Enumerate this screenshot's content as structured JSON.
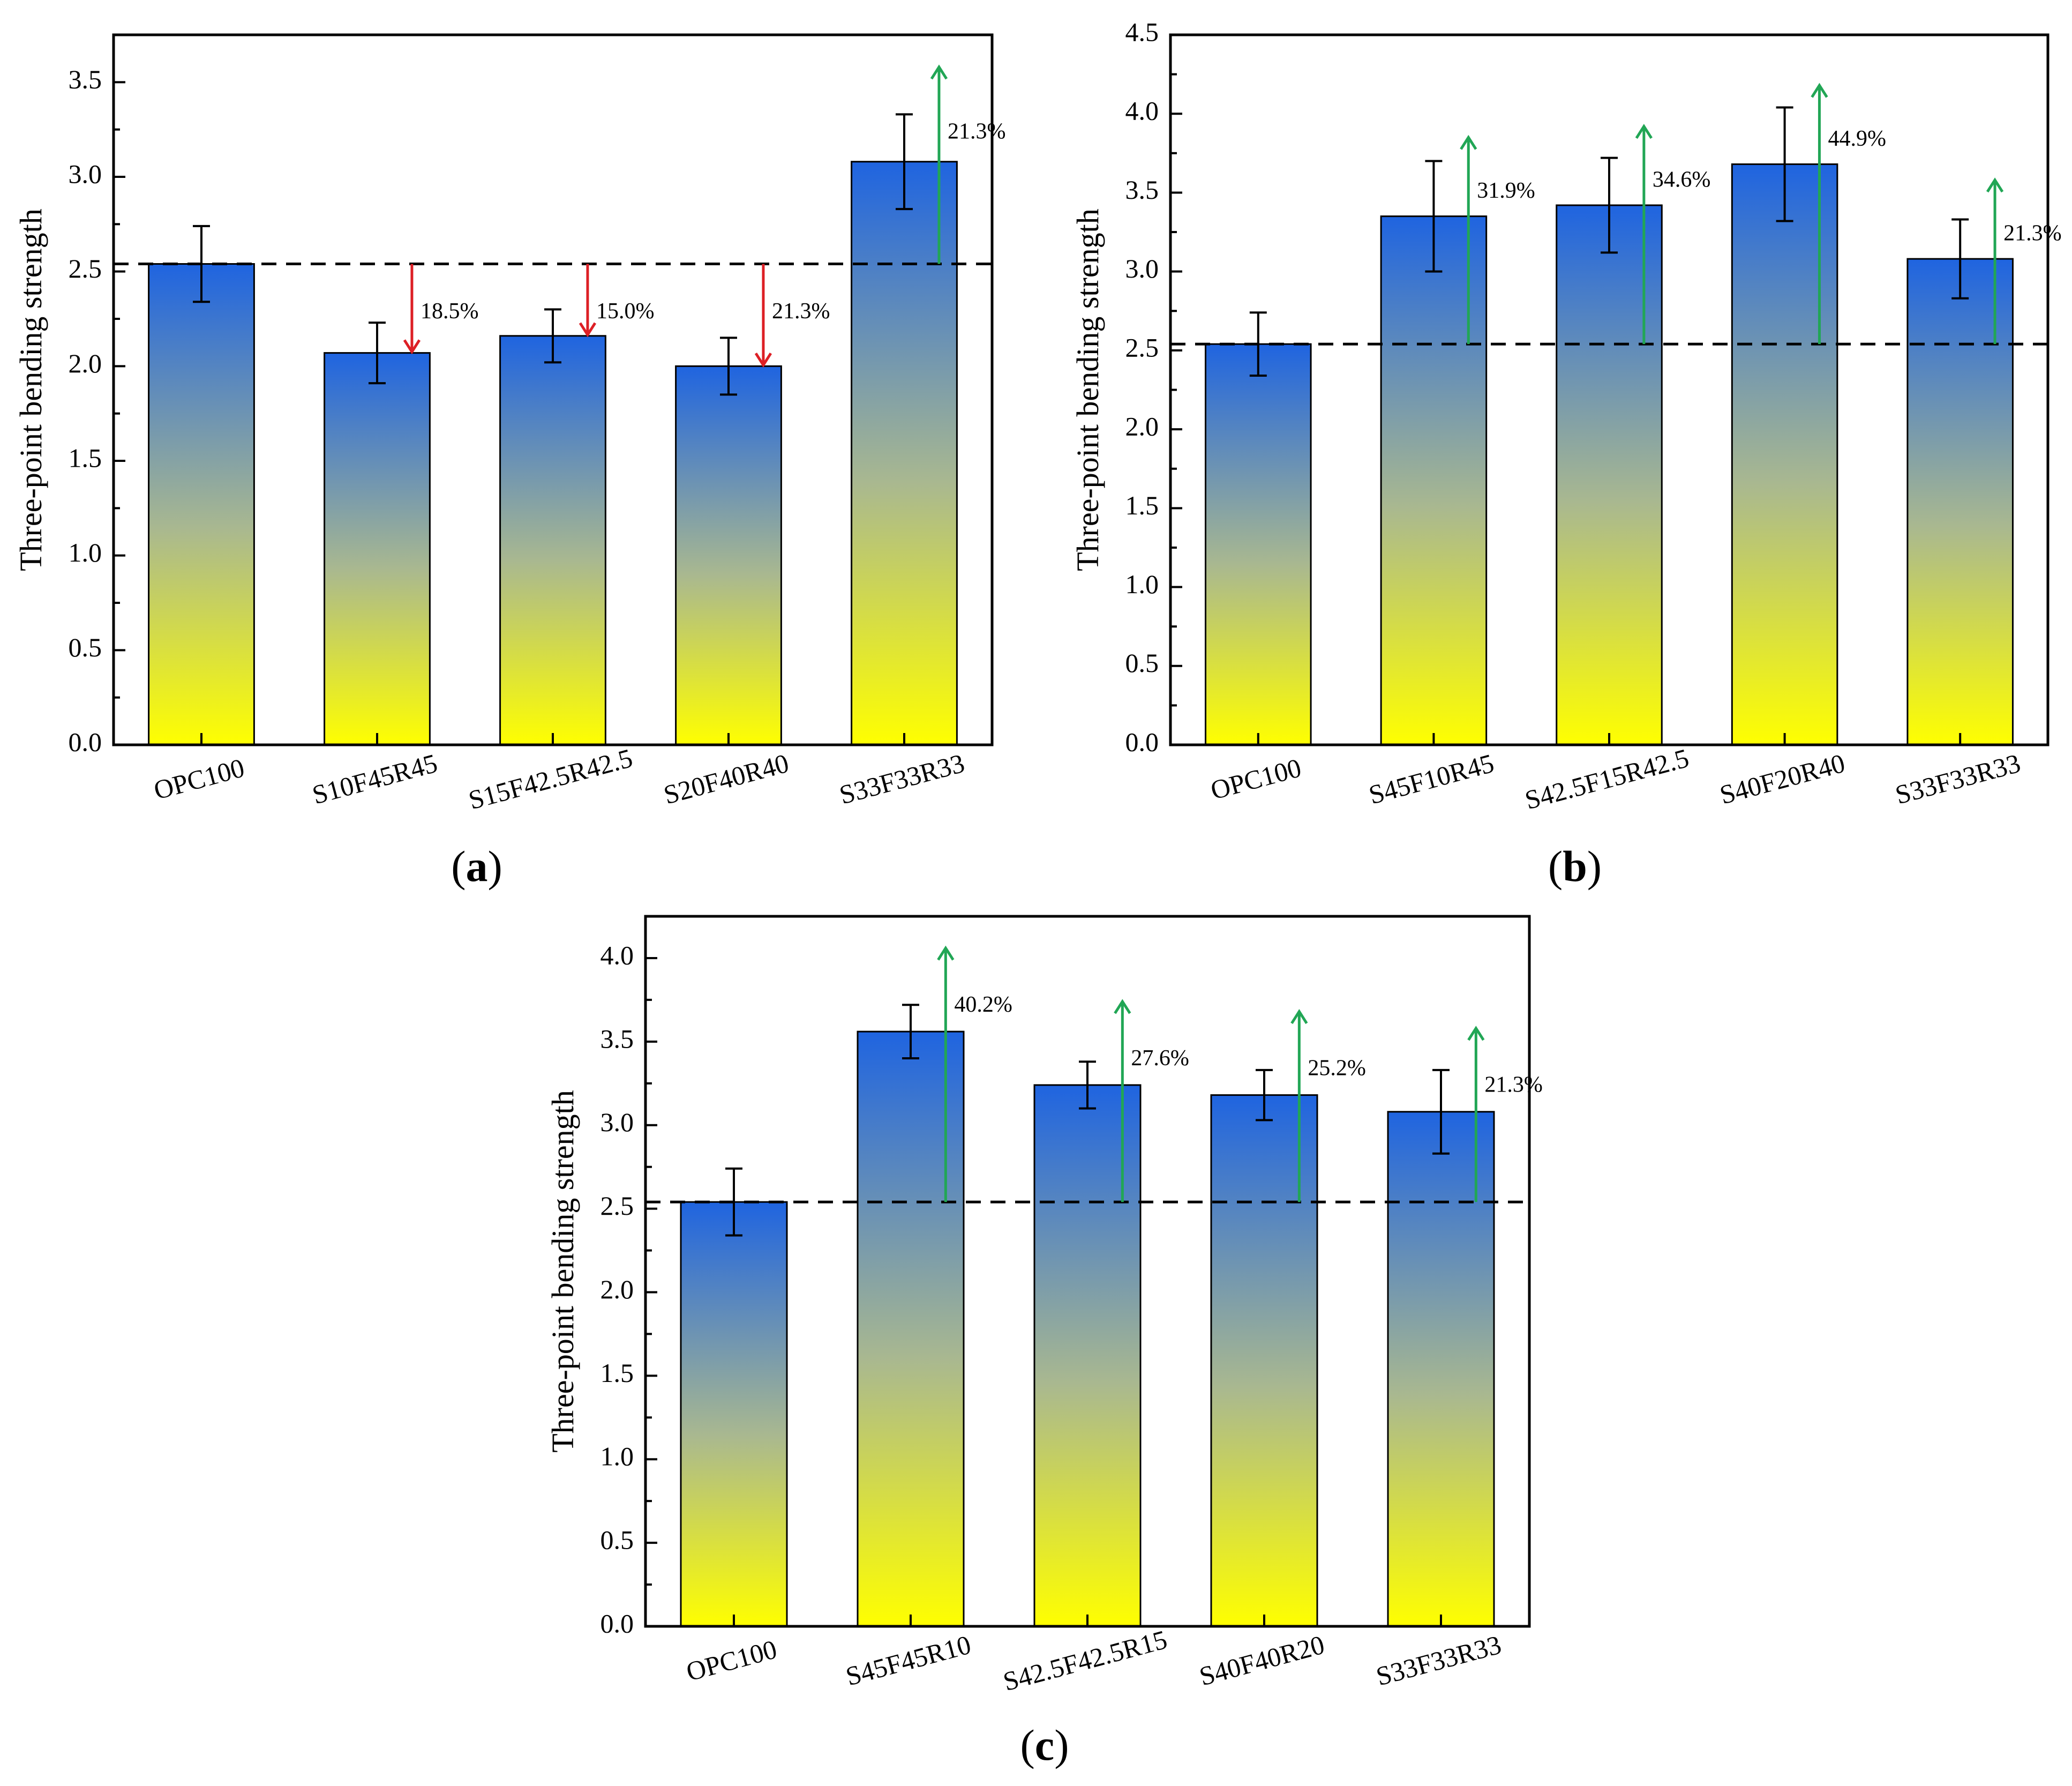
{
  "colors": {
    "bar_top": "#1f64e0",
    "bar_bottom": "#ffff00",
    "increase_arrow": "#21a655",
    "decrease_arrow": "#dd1f25",
    "reference_line": "#000000"
  },
  "chart_data": [
    {
      "id": "a",
      "panel_label": "a",
      "type": "bar",
      "ylabel": "Three-point bending strength",
      "ylim": [
        0,
        3.75
      ],
      "yticks": [
        0.0,
        0.5,
        1.0,
        1.5,
        2.0,
        2.5,
        3.0,
        3.5
      ],
      "tick_labels": [
        "0.0",
        "0.5",
        "1.0",
        "1.5",
        "2.0",
        "2.5",
        "3.0",
        "3.5"
      ],
      "categories": [
        "OPC100",
        "S10F45R45",
        "S15F42.5R42.5",
        "S20F40R40",
        "S33F33R33"
      ],
      "values": [
        2.54,
        2.07,
        2.16,
        2.0,
        3.08
      ],
      "errors": [
        0.2,
        0.16,
        0.14,
        0.15,
        0.25
      ],
      "reference": 2.54,
      "changes": [
        {
          "index": 1,
          "direction": "down",
          "label": "18.5%"
        },
        {
          "index": 2,
          "direction": "down",
          "label": "15.0%"
        },
        {
          "index": 3,
          "direction": "down",
          "label": "21.3%"
        },
        {
          "index": 4,
          "direction": "up",
          "label": "21.3%"
        }
      ]
    },
    {
      "id": "b",
      "panel_label": "b",
      "type": "bar",
      "ylabel": "Three-point bending strength",
      "ylim": [
        0,
        4.5
      ],
      "yticks": [
        0.0,
        0.5,
        1.0,
        1.5,
        2.0,
        2.5,
        3.0,
        3.5,
        4.0,
        4.5
      ],
      "tick_labels": [
        "0.0",
        "0.5",
        "1.0",
        "1.5",
        "2.0",
        "2.5",
        "3.0",
        "3.5",
        "4.0",
        "4.5"
      ],
      "categories": [
        "OPC100",
        "S45F10R45",
        "S42.5F15R42.5",
        "S40F20R40",
        "S33F33R33"
      ],
      "values": [
        2.54,
        3.35,
        3.42,
        3.68,
        3.08
      ],
      "errors": [
        0.2,
        0.35,
        0.3,
        0.36,
        0.25
      ],
      "reference": 2.54,
      "changes": [
        {
          "index": 1,
          "direction": "up",
          "label": "31.9%"
        },
        {
          "index": 2,
          "direction": "up",
          "label": "34.6%"
        },
        {
          "index": 3,
          "direction": "up",
          "label": "44.9%"
        },
        {
          "index": 4,
          "direction": "up",
          "label": "21.3%"
        }
      ]
    },
    {
      "id": "c",
      "panel_label": "c",
      "type": "bar",
      "ylabel": "Three-point bending strength",
      "ylim": [
        0,
        4.25
      ],
      "yticks": [
        0.0,
        0.5,
        1.0,
        1.5,
        2.0,
        2.5,
        3.0,
        3.5,
        4.0
      ],
      "tick_labels": [
        "0.0",
        "0.5",
        "1.0",
        "1.5",
        "2.0",
        "2.5",
        "3.0",
        "3.5",
        "4.0"
      ],
      "categories": [
        "OPC100",
        "S45F45R10",
        "S42.5F42.5R15",
        "S40F40R20",
        "S33F33R33"
      ],
      "values": [
        2.54,
        3.56,
        3.24,
        3.18,
        3.08
      ],
      "errors": [
        0.2,
        0.16,
        0.14,
        0.15,
        0.25
      ],
      "reference": 2.54,
      "changes": [
        {
          "index": 1,
          "direction": "up",
          "label": "40.2%"
        },
        {
          "index": 2,
          "direction": "up",
          "label": "27.6%"
        },
        {
          "index": 3,
          "direction": "up",
          "label": "25.2%"
        },
        {
          "index": 4,
          "direction": "up",
          "label": "21.3%"
        }
      ]
    }
  ]
}
